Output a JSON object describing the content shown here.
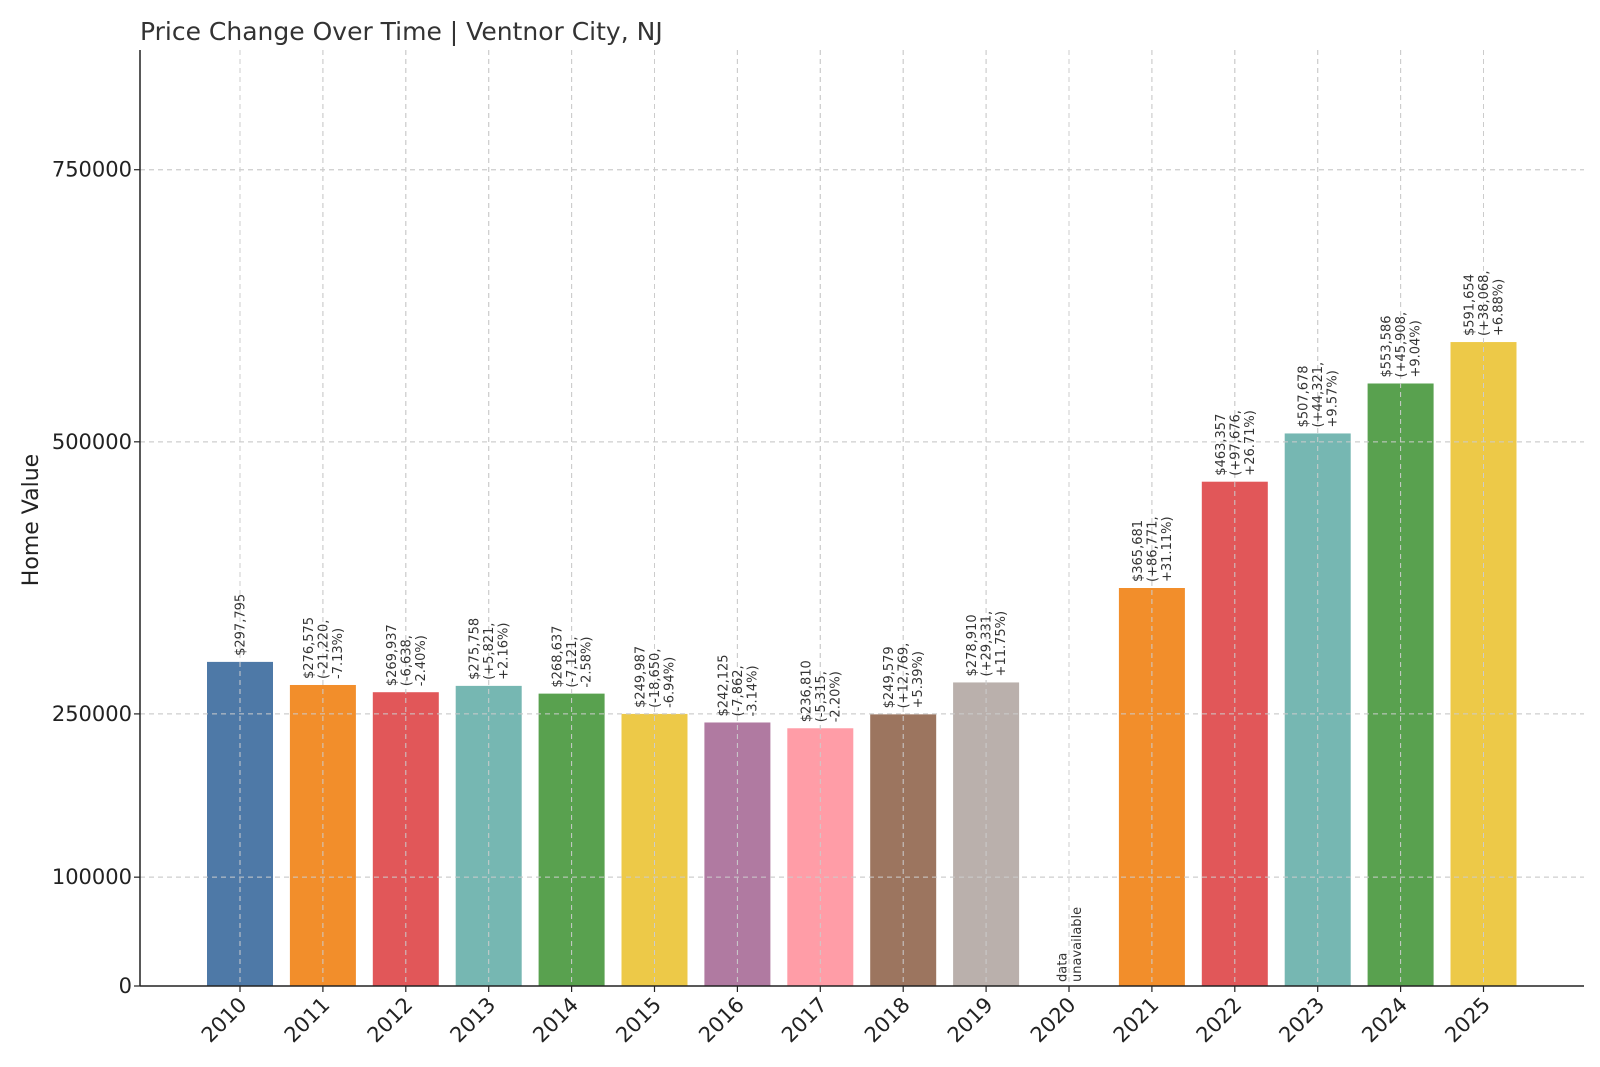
{
  "chart_data": {
    "type": "bar",
    "title": "Price Change Over Time | Ventnor City, NJ",
    "xlabel": "",
    "ylabel": "Home Value",
    "ylim": [
      0,
      860000
    ],
    "yticks": [
      0,
      100000,
      250000,
      500000,
      750000
    ],
    "grid": true,
    "categories": [
      "2010",
      "2011",
      "2012",
      "2013",
      "2014",
      "2015",
      "2016",
      "2017",
      "2018",
      "2019",
      "2020",
      "2021",
      "2022",
      "2023",
      "2024",
      "2025"
    ],
    "values": [
      297795,
      276575,
      269937,
      275758,
      268637,
      249987,
      242125,
      236810,
      249579,
      278910,
      null,
      365681,
      463357,
      507678,
      553586,
      591654
    ],
    "colors": [
      "#4e79a7",
      "#f28e2b",
      "#e15759",
      "#76b7b2",
      "#59a14f",
      "#edc948",
      "#b07aa1",
      "#ff9da7",
      "#9c755f",
      "#bab0ac",
      "#4e79a7",
      "#f28e2b",
      "#e15759",
      "#76b7b2",
      "#59a14f",
      "#edc948"
    ],
    "annotations": [
      [
        "$297,795"
      ],
      [
        "$276,575",
        "(-21,220,",
        "-7.13%)"
      ],
      [
        "$269,937",
        "(-6,638,",
        "-2.40%)"
      ],
      [
        "$275,758",
        "(+5,821,",
        "+2.16%)"
      ],
      [
        "$268,637",
        "(-7,121,",
        "-2.58%)"
      ],
      [
        "$249,987",
        "(-18,650,",
        "-6.94%)"
      ],
      [
        "$242,125",
        "(-7,862,",
        "-3.14%)"
      ],
      [
        "$236,810",
        "(-5,315,",
        "-2.20%)"
      ],
      [
        "$249,579",
        "(+12,769,",
        "+5.39%)"
      ],
      [
        "$278,910",
        "(+29,331,",
        "+11.75%)"
      ],
      [
        "data",
        "unavailable"
      ],
      [
        "$365,681",
        "(+86,771,",
        "+31.11%)"
      ],
      [
        "$463,357",
        "(+97,676,",
        "+26.71%)"
      ],
      [
        "$507,678",
        "(+44,321,",
        "+9.57%)"
      ],
      [
        "$553,586",
        "(+45,908,",
        "+9.04%)"
      ],
      [
        "$591,654",
        "(+38,068,",
        "+6.88%)"
      ]
    ]
  }
}
